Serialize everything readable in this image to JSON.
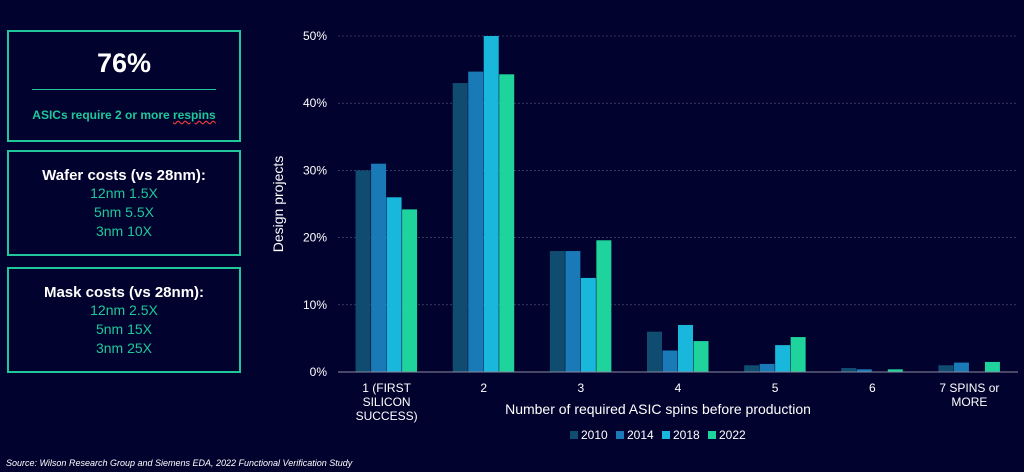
{
  "panels": {
    "stat": {
      "value": "76%",
      "caption_prefix": "ASICs require 2 or more ",
      "caption_word": "respins"
    },
    "wafer": {
      "title": "Wafer costs (vs 28nm):",
      "lines": [
        "12nm 1.5X",
        "5nm 5.5X",
        "3nm 10X"
      ]
    },
    "mask": {
      "title": "Mask costs (vs 28nm):",
      "lines": [
        "12nm 2.5X",
        "5nm 15X",
        "3nm 25X"
      ]
    }
  },
  "source": "Source:  Wilson Research Group and Siemens EDA, 2022 Functional Verification Study",
  "chart_data": {
    "type": "bar",
    "categories": [
      [
        "1 (FIRST",
        "SILICON",
        "SUCCESS)"
      ],
      [
        "2"
      ],
      [
        "3"
      ],
      [
        "4"
      ],
      [
        "5"
      ],
      [
        "6"
      ],
      [
        "7 SPINS or",
        "MORE"
      ]
    ],
    "series": [
      {
        "name": "2010",
        "color": "#0f4c70",
        "values": [
          30,
          43,
          18,
          6,
          1,
          0.6,
          1
        ]
      },
      {
        "name": "2014",
        "color": "#1a7ab8",
        "values": [
          31,
          44.7,
          18,
          3.2,
          1.2,
          0.4,
          1.4
        ]
      },
      {
        "name": "2018",
        "color": "#1ab7dc",
        "values": [
          26,
          50,
          14,
          7,
          4,
          0,
          0
        ]
      },
      {
        "name": "2022",
        "color": "#1fd39c",
        "values": [
          24.2,
          44.3,
          19.6,
          4.6,
          5.2,
          0.4,
          1.5
        ]
      }
    ],
    "ylim": [
      0,
      50
    ],
    "yticks": [
      "0%",
      "10%",
      "20%",
      "30%",
      "40%",
      "50%"
    ],
    "ylabel": "Design projects",
    "xlabel": "Number of required ASIC spins before production",
    "legend_placement": "bottom",
    "grid": true
  }
}
